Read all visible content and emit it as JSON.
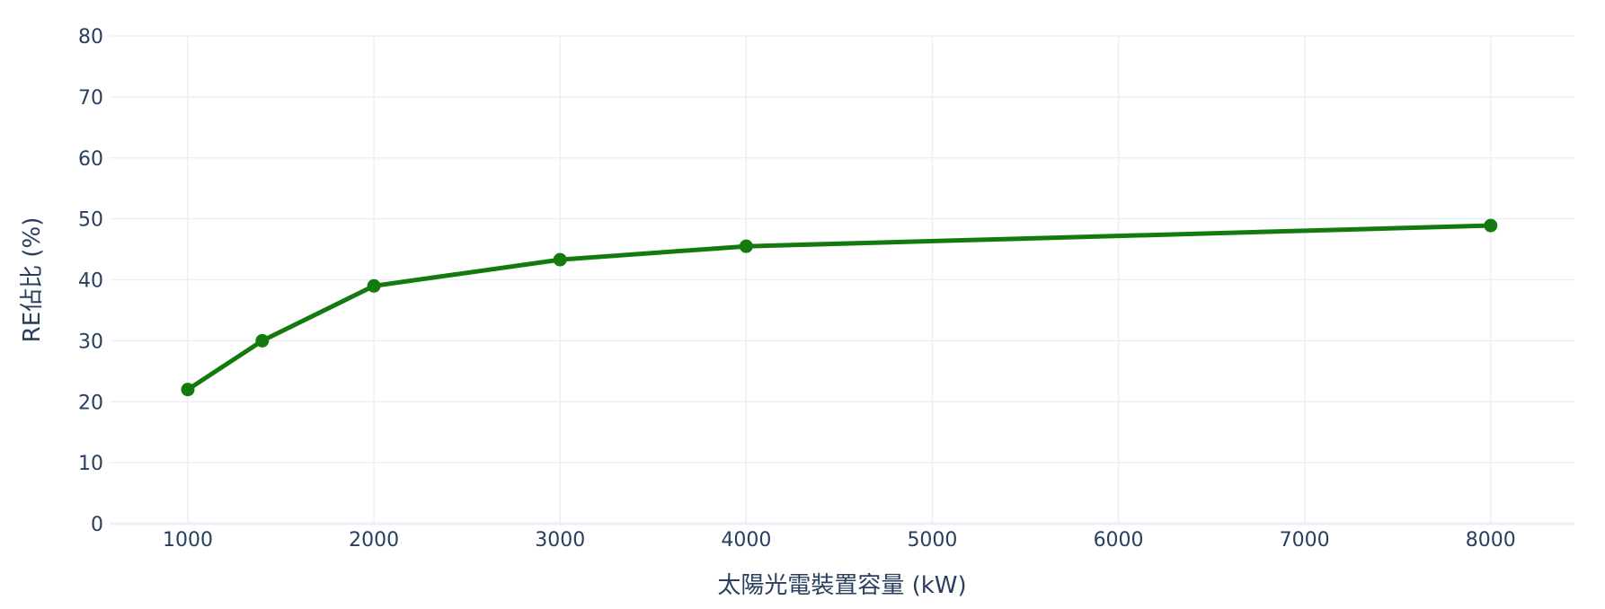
{
  "chart_data": {
    "type": "line",
    "xlabel": "太陽光電裝置容量 (kW)",
    "ylabel": "RE佔比 (%)",
    "xlim": [
      580,
      8450
    ],
    "ylim": [
      0,
      80
    ],
    "x_ticks": [
      1000,
      2000,
      3000,
      4000,
      5000,
      6000,
      7000,
      8000
    ],
    "y_ticks": [
      0,
      10,
      20,
      30,
      40,
      50,
      60,
      70,
      80
    ],
    "grid": true,
    "series": [
      {
        "color": "#157a0e",
        "x": [
          1000,
          1400,
          2000,
          3000,
          4000,
          8000
        ],
        "y": [
          22,
          30,
          39,
          43.3,
          45.5,
          48.9
        ]
      }
    ]
  }
}
